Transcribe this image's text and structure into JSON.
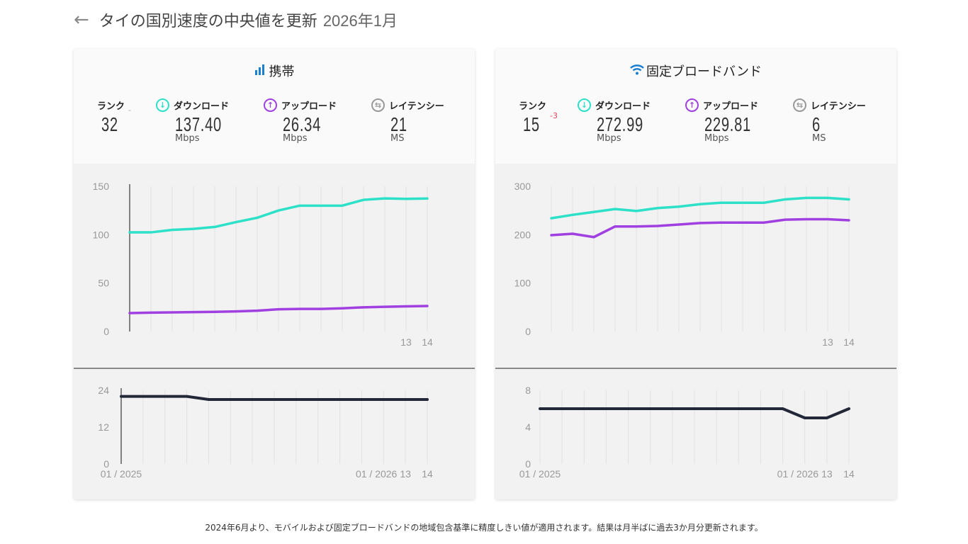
{
  "header": {
    "back_icon": "arrow-left-icon",
    "title": "タイの国別速度の中央値を更新",
    "date": "2026年1月"
  },
  "colors": {
    "download": "#2de0c8",
    "upload": "#a040e0",
    "latency": "#222838",
    "accent": "#1a7fd0",
    "rank_change": "#e0445a"
  },
  "panels": [
    {
      "title": "携帯",
      "icon": "signal-bars-icon",
      "rank": {
        "label": "ランク",
        "value": "32",
        "change": "-"
      },
      "download": {
        "label": "ダウンロード",
        "value": "137.40",
        "unit": "Mbps"
      },
      "upload": {
        "label": "アップロード",
        "value": "26.34",
        "unit": "Mbps"
      },
      "latency": {
        "label": "レイテンシー",
        "value": "21",
        "unit": "MS"
      }
    },
    {
      "title": "固定ブロードバンド",
      "icon": "wifi-icon",
      "rank": {
        "label": "ランク",
        "value": "15",
        "change": "-3"
      },
      "download": {
        "label": "ダウンロード",
        "value": "272.99",
        "unit": "Mbps"
      },
      "upload": {
        "label": "アップロード",
        "value": "229.81",
        "unit": "Mbps"
      },
      "latency": {
        "label": "レイテンシー",
        "value": "6",
        "unit": "MS"
      }
    }
  ],
  "chart_data": [
    {
      "type": "line",
      "panel": "携帯",
      "chart": "speed",
      "ylim": [
        0,
        150
      ],
      "yticks": [
        "150",
        "100",
        "50",
        "0"
      ],
      "xticks": {
        "13": "13",
        "14": "14"
      },
      "series": [
        {
          "key": "download",
          "values": [
            102.4,
            102.4,
            105,
            106,
            108,
            113,
            117.5,
            125,
            130,
            130,
            130,
            136,
            137.5,
            137,
            137.4
          ]
        },
        {
          "key": "upload",
          "values": [
            19,
            19.5,
            19.8,
            20,
            20.3,
            20.8,
            21.5,
            23,
            23.3,
            23.3,
            24,
            25,
            25.5,
            26,
            26.34
          ]
        }
      ]
    },
    {
      "type": "line",
      "panel": "携帯",
      "chart": "latency",
      "ylim": [
        0,
        24
      ],
      "yticks": [
        "24",
        "12",
        "0"
      ],
      "xticks": {
        "0": "01 / 2025",
        "12": "01 / 2026",
        "13": "13",
        "14": "14"
      },
      "series": [
        {
          "key": "latency",
          "values": [
            22,
            22,
            22,
            22,
            21,
            21,
            21,
            21,
            21,
            21,
            21,
            21,
            21,
            21,
            21
          ]
        }
      ]
    },
    {
      "type": "line",
      "panel": "固定ブロードバンド",
      "chart": "speed",
      "ylim": [
        0,
        300
      ],
      "yticks": [
        "300",
        "200",
        "100",
        "0"
      ],
      "xticks": {
        "13": "13",
        "14": "14"
      },
      "series": [
        {
          "key": "download",
          "values": [
            234,
            241,
            247,
            253,
            249,
            255,
            258,
            263,
            266,
            266,
            266,
            273,
            276,
            276,
            272.99
          ]
        },
        {
          "key": "upload",
          "values": [
            199,
            202,
            195,
            217,
            217,
            218,
            221,
            224,
            225,
            225,
            225,
            231,
            232,
            232,
            229.81
          ]
        }
      ]
    },
    {
      "type": "line",
      "panel": "固定ブロードバンド",
      "chart": "latency",
      "ylim": [
        0,
        8
      ],
      "yticks": [
        "8",
        "4",
        "0"
      ],
      "xticks": {
        "0": "01 / 2025",
        "12": "01 / 2026",
        "13": "13",
        "14": "14"
      },
      "series": [
        {
          "key": "latency",
          "values": [
            6,
            6,
            6,
            6,
            6,
            6,
            6,
            6,
            6,
            6,
            6,
            6,
            5,
            5,
            6
          ]
        }
      ]
    }
  ],
  "footer": "2024年6月より、モバイルおよび固定ブロードバンドの地域包含基準に精度しきい値が適用されます。結果は月半ばに過去3か月分更新されます。"
}
